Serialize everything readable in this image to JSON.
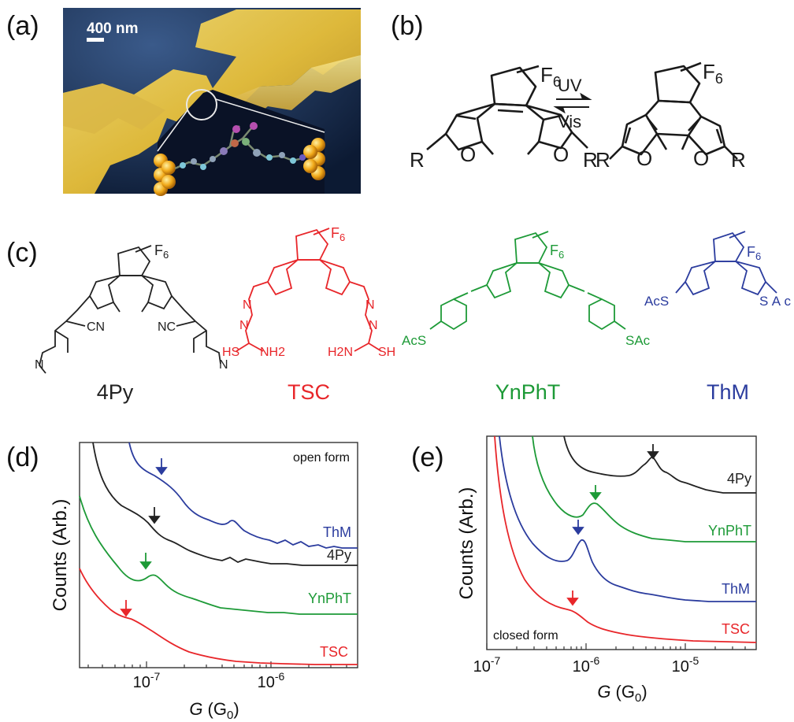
{
  "panels": {
    "a": {
      "label": "(a)",
      "scale_bar": "400 nm"
    },
    "b": {
      "label": "(b)",
      "substituent": "R",
      "ring_oxygen": "O",
      "fluorine": "F",
      "fluorine_count": "6",
      "forward": "UV",
      "reverse": "Vis"
    },
    "c": {
      "label": "(c)",
      "molecules": [
        {
          "name": "4Py",
          "color": "#222222",
          "groups": [
            "N",
            "CN",
            "NC",
            "N"
          ]
        },
        {
          "name": "TSC",
          "color": "#e8262a",
          "groups": [
            "N",
            "N",
            "N",
            "N",
            "HS",
            "NH2",
            "H2N",
            "SH"
          ]
        },
        {
          "name": "YnPhT",
          "color": "#1d9a37",
          "groups": [
            "AcS",
            "SAc"
          ]
        },
        {
          "name": "ThM",
          "color": "#2b3c9e",
          "groups": [
            "AcS",
            "SAc"
          ]
        }
      ]
    },
    "d": {
      "label": "(d)",
      "form_note": "open form",
      "ylabel": "Counts (Arb.)",
      "xlabel_var": "G",
      "xlabel_unit": "G",
      "xlabel_sub": "0",
      "series": [
        {
          "name": "ThM",
          "color": "#2b3c9e"
        },
        {
          "name": "4Py",
          "color": "#222222"
        },
        {
          "name": "YnPhT",
          "color": "#1d9a37"
        },
        {
          "name": "TSC",
          "color": "#e8262a"
        }
      ],
      "ticks": [
        {
          "base": "10",
          "exp": "-7"
        },
        {
          "base": "10",
          "exp": "-6"
        }
      ]
    },
    "e": {
      "label": "(e)",
      "form_note": "closed form",
      "ylabel": "Counts (Arb.)",
      "xlabel_var": "G",
      "xlabel_unit": "G",
      "xlabel_sub": "0",
      "series": [
        {
          "name": "4Py",
          "color": "#222222"
        },
        {
          "name": "YnPhT",
          "color": "#1d9a37"
        },
        {
          "name": "ThM",
          "color": "#2b3c9e"
        },
        {
          "name": "TSC",
          "color": "#e8262a"
        }
      ],
      "ticks": [
        {
          "base": "10",
          "exp": "-7"
        },
        {
          "base": "10",
          "exp": "-6"
        },
        {
          "base": "10",
          "exp": "-5"
        }
      ]
    }
  }
}
